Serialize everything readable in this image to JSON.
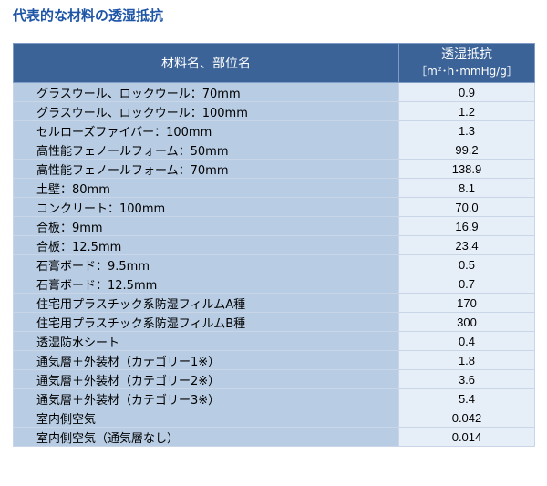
{
  "page": {
    "title": "代表的な材料の透湿抵抗"
  },
  "table": {
    "header": {
      "name_col": "材料名、部位名",
      "value_col": "透湿抵抗",
      "unit": "［m²･h･mmHg/g］"
    },
    "rows": [
      {
        "name": "グラスウール、ロックウール：70mm",
        "value": "0.9"
      },
      {
        "name": "グラスウール、ロックウール：100mm",
        "value": "1.2"
      },
      {
        "name": "セルローズファイバー：100mm",
        "value": "1.3"
      },
      {
        "name": "高性能フェノールフォーム：50mm",
        "value": "99.2"
      },
      {
        "name": "高性能フェノールフォーム：70mm",
        "value": "138.9"
      },
      {
        "name": "土壁：80mm",
        "value": "8.1"
      },
      {
        "name": "コンクリート：100mm",
        "value": "70.0"
      },
      {
        "name": "合板：9mm",
        "value": "16.9"
      },
      {
        "name": "合板：12.5mm",
        "value": "23.4"
      },
      {
        "name": "石膏ボード：9.5mm",
        "value": "0.5"
      },
      {
        "name": "石膏ボード：12.5mm",
        "value": "0.7"
      },
      {
        "name": "住宅用プラスチック系防湿フィルムA種",
        "value": "170"
      },
      {
        "name": "住宅用プラスチック系防湿フィルムB種",
        "value": "300"
      },
      {
        "name": "透湿防水シート",
        "value": "0.4"
      },
      {
        "name": "通気層＋外装材（カテゴリー1※）",
        "value": "1.8"
      },
      {
        "name": "通気層＋外装材（カテゴリー2※）",
        "value": "3.6"
      },
      {
        "name": "通気層＋外装材（カテゴリー3※）",
        "value": "5.4"
      },
      {
        "name": "室内側空気",
        "value": "0.042"
      },
      {
        "name": "室内側空気（通気層なし）",
        "value": "0.014"
      }
    ]
  },
  "colors": {
    "title": "#1e55a6",
    "header_bg": "#3b6398",
    "name_cell_bg": "#b8cde4",
    "value_cell_bg": "#e6eef8"
  }
}
